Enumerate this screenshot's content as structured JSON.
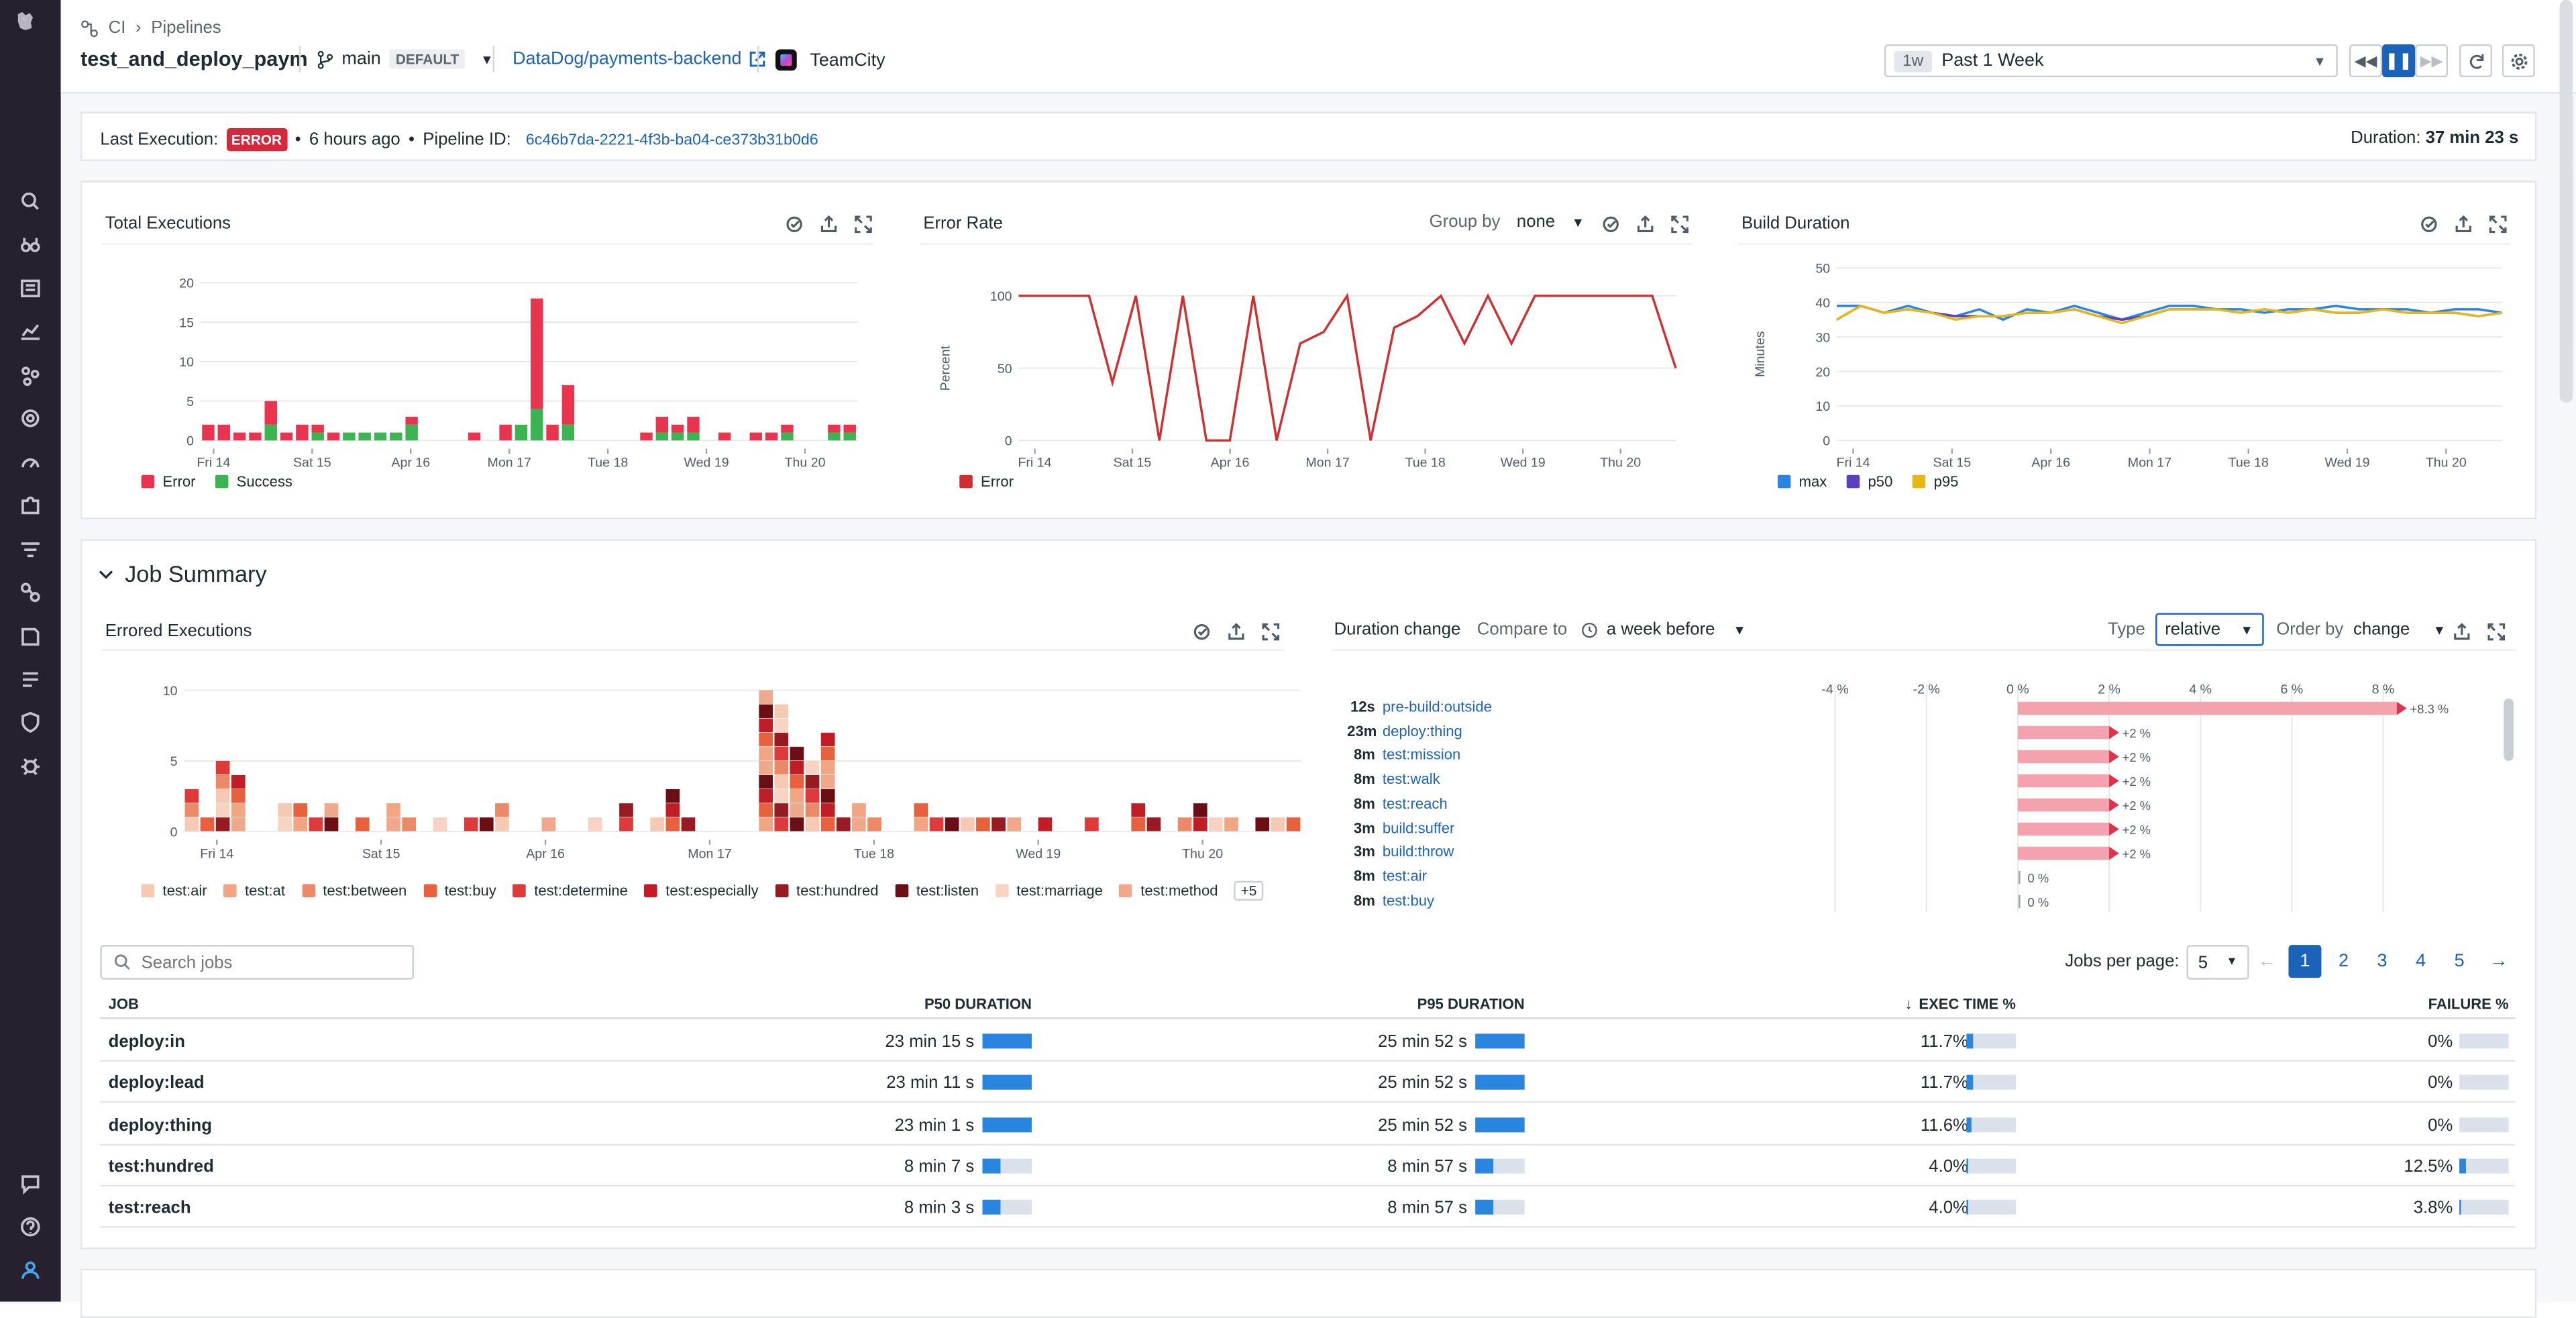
{
  "nav": {
    "icons": [
      "search-icon",
      "binoculars-icon",
      "list-icon",
      "chart-icon",
      "dots-icon",
      "target-icon",
      "gauge-icon",
      "puzzle-icon",
      "filter-icon",
      "link-icon",
      "book-icon",
      "logs-icon",
      "shield-icon",
      "bug-icon"
    ],
    "bottom": [
      "chat-icon",
      "help-icon",
      "user-icon"
    ]
  },
  "breadcrumb": {
    "root": "CI",
    "current": "Pipelines"
  },
  "header": {
    "title": "test_and_deploy_paym",
    "branch": "main",
    "branch_badge": "DEFAULT",
    "repo": "DataDog/payments-backend",
    "provider": "TeamCity"
  },
  "time": {
    "short": "1w",
    "label": "Past 1 Week"
  },
  "last_execution": {
    "label": "Last Execution:",
    "status": "ERROR",
    "ago": "6 hours ago",
    "pipeline_label": "Pipeline ID:",
    "pipeline_id": "6c46b7da-2221-4f3b-ba04-ce373b31b0d6",
    "duration_label": "Duration:",
    "duration": "37 min 23 s"
  },
  "panels": {
    "total": {
      "title": "Total Executions"
    },
    "error_rate": {
      "title": "Error Rate",
      "group_by_label": "Group by",
      "group_by": "none"
    },
    "build": {
      "title": "Build Duration"
    },
    "errored": {
      "title": "Errored Executions"
    },
    "duration_change": {
      "title": "Duration change",
      "compare_label": "Compare to",
      "compare": "a week before",
      "type_label": "Type",
      "type": "relative",
      "order_label": "Order by",
      "order": "change"
    }
  },
  "job_summary": {
    "title": "Job Summary",
    "search_placeholder": "Search jobs",
    "per_page_label": "Jobs per page:",
    "per_page": "5",
    "pages": [
      "1",
      "2",
      "3",
      "4",
      "5"
    ],
    "columns": {
      "job": "JOB",
      "p50": "P50 DURATION",
      "p95": "P95 DURATION",
      "exec": "EXEC TIME %",
      "fail": "FAILURE %"
    },
    "rows": [
      {
        "job": "deploy:in",
        "p50": "23 min 15 s",
        "p50_frac": 1.0,
        "p95": "25 min 52 s",
        "p95_frac": 1.0,
        "exec": "11.7%",
        "exec_frac": 0.117,
        "fail": "0%",
        "fail_frac": 0
      },
      {
        "job": "deploy:lead",
        "p50": "23 min 11 s",
        "p50_frac": 1.0,
        "p95": "25 min 52 s",
        "p95_frac": 1.0,
        "exec": "11.7%",
        "exec_frac": 0.117,
        "fail": "0%",
        "fail_frac": 0
      },
      {
        "job": "deploy:thing",
        "p50": "23 min 1 s",
        "p50_frac": 0.99,
        "p95": "25 min 52 s",
        "p95_frac": 1.0,
        "exec": "11.6%",
        "exec_frac": 0.116,
        "fail": "0%",
        "fail_frac": 0
      },
      {
        "job": "test:hundred",
        "p50": "8 min 7 s",
        "p50_frac": 0.35,
        "p95": "8 min 57 s",
        "p95_frac": 0.35,
        "exec": "4.0%",
        "exec_frac": 0.04,
        "fail": "12.5%",
        "fail_frac": 0.125
      },
      {
        "job": "test:reach",
        "p50": "8 min 3 s",
        "p50_frac": 0.35,
        "p95": "8 min 57 s",
        "p95_frac": 0.35,
        "exec": "4.0%",
        "exec_frac": 0.04,
        "fail": "3.8%",
        "fail_frac": 0.038
      }
    ]
  },
  "chart_data": [
    {
      "type": "bar",
      "title": "Total Executions",
      "stacked": true,
      "ylim": [
        0,
        20
      ],
      "yticks": [
        0,
        5,
        10,
        15,
        20
      ],
      "xticks": [
        "Fri 14",
        "Sat 15",
        "Apr 16",
        "Mon 17",
        "Tue 18",
        "Wed 19",
        "Thu 20"
      ],
      "series": [
        {
          "name": "Error",
          "color": "#e8344e",
          "values": [
            2,
            2,
            1,
            1,
            3,
            1,
            2,
            1,
            1,
            0,
            0,
            0,
            0,
            1,
            0,
            0,
            0,
            1,
            0,
            2,
            0,
            14,
            2,
            5,
            0,
            0,
            0,
            0,
            1,
            2,
            1,
            2,
            0,
            1,
            0,
            1,
            1,
            1,
            0,
            0,
            1,
            1
          ]
        },
        {
          "name": "Success",
          "color": "#3cb451",
          "values": [
            0,
            0,
            0,
            0,
            2,
            0,
            0,
            1,
            0,
            1,
            1,
            1,
            1,
            2,
            0,
            0,
            0,
            0,
            0,
            0,
            2,
            4,
            0,
            2,
            0,
            0,
            0,
            0,
            0,
            1,
            1,
            1,
            0,
            0,
            0,
            0,
            0,
            1,
            0,
            0,
            1,
            1
          ]
        }
      ]
    },
    {
      "type": "line",
      "title": "Error Rate",
      "ylabel": "Percent",
      "ylim": [
        0,
        100
      ],
      "yticks": [
        0,
        50,
        100
      ],
      "xticks": [
        "Fri 14",
        "Sat 15",
        "Apr 16",
        "Mon 17",
        "Tue 18",
        "Wed 19",
        "Thu 20"
      ],
      "series": [
        {
          "name": "Error",
          "color": "#d12f2f",
          "values": [
            100,
            100,
            100,
            100,
            40,
            100,
            0,
            100,
            0,
            0,
            100,
            0,
            67,
            75,
            100,
            0,
            78,
            86,
            100,
            67,
            100,
            67,
            100,
            100,
            100,
            100,
            100,
            100,
            50
          ]
        }
      ]
    },
    {
      "type": "line",
      "title": "Build Duration",
      "ylabel": "Minutes",
      "ylim": [
        0,
        50
      ],
      "yticks": [
        0,
        10,
        20,
        30,
        40,
        50
      ],
      "xticks": [
        "Fri 14",
        "Sat 15",
        "Apr 16",
        "Mon 17",
        "Tue 18",
        "Wed 19",
        "Thu 20"
      ],
      "series": [
        {
          "name": "max",
          "color": "#2a85de",
          "values": [
            39,
            39,
            37,
            39,
            37,
            36,
            38,
            35,
            38,
            37,
            39,
            37,
            35,
            37,
            39,
            39,
            38,
            38,
            37,
            38,
            38,
            39,
            38,
            38,
            38,
            37,
            38,
            38,
            37
          ]
        },
        {
          "name": "p50",
          "color": "#5b3fbf",
          "values": [
            35,
            39,
            37,
            38,
            37,
            36,
            36,
            36,
            37,
            37,
            38,
            36,
            35,
            36,
            38,
            38,
            38,
            37,
            38,
            37,
            38,
            37,
            37,
            38,
            37,
            37,
            37,
            36,
            37
          ]
        },
        {
          "name": "p95",
          "color": "#e6b817",
          "values": [
            35,
            39,
            37,
            38,
            37,
            35,
            36,
            36,
            37,
            37,
            38,
            36,
            34,
            36,
            38,
            38,
            38,
            37,
            38,
            37,
            38,
            37,
            37,
            38,
            37,
            37,
            37,
            36,
            37
          ]
        }
      ]
    },
    {
      "type": "bar",
      "title": "Errored Executions",
      "stacked": true,
      "ylim": [
        0,
        10
      ],
      "yticks": [
        0,
        5,
        10
      ],
      "xticks": [
        "Fri 14",
        "Sat 15",
        "Apr 16",
        "Mon 17",
        "Tue 18",
        "Wed 19",
        "Thu 20"
      ],
      "series": [
        {
          "name": "test:air",
          "color": "#f6c9b2"
        },
        {
          "name": "test:at",
          "color": "#f2a582"
        },
        {
          "name": "test:between",
          "color": "#ec8a67"
        },
        {
          "name": "test:buy",
          "color": "#e8613d"
        },
        {
          "name": "test:determine",
          "color": "#de3a3a"
        },
        {
          "name": "test:especially",
          "color": "#c21d26"
        },
        {
          "name": "test:hundred",
          "color": "#971b20"
        },
        {
          "name": "test:listen",
          "color": "#6b0f15"
        },
        {
          "name": "test:marriage",
          "color": "#f8d3c2"
        },
        {
          "name": "test:method",
          "color": "#f0a88a"
        }
      ],
      "totals": [
        3,
        1,
        5,
        4,
        0,
        0,
        2,
        2,
        1,
        2,
        0,
        1,
        0,
        2,
        1,
        0,
        1,
        0,
        1,
        1,
        2,
        0,
        0,
        1,
        0,
        0,
        1,
        0,
        2,
        0,
        1,
        3,
        1,
        0,
        0,
        0,
        0,
        10,
        9,
        6,
        5,
        7,
        1,
        2,
        1,
        0,
        0,
        2,
        1,
        1,
        1,
        1,
        1,
        1,
        0,
        1,
        0,
        0,
        1,
        0,
        0,
        2,
        1,
        0,
        1,
        2,
        1,
        1,
        0,
        1,
        1,
        1
      ],
      "legend_more": "+5"
    },
    {
      "type": "bar",
      "title": "Duration change",
      "orientation": "horizontal",
      "xlim": [
        -0.05,
        0.09
      ],
      "xticks": [
        "-4 %",
        "-2 %",
        "0 %",
        "2 %",
        "4 %",
        "6 %",
        "8 %"
      ],
      "rows": [
        {
          "dur": "12s",
          "job": "pre-build:outside",
          "value": 8.3,
          "label": "+8.3 %"
        },
        {
          "dur": "23m",
          "job": "deploy:thing",
          "value": 2,
          "label": "+2 %"
        },
        {
          "dur": "8m",
          "job": "test:mission",
          "value": 2,
          "label": "+2 %"
        },
        {
          "dur": "8m",
          "job": "test:walk",
          "value": 2,
          "label": "+2 %"
        },
        {
          "dur": "8m",
          "job": "test:reach",
          "value": 2,
          "label": "+2 %"
        },
        {
          "dur": "3m",
          "job": "build:suffer",
          "value": 2,
          "label": "+2 %"
        },
        {
          "dur": "3m",
          "job": "build:throw",
          "value": 2,
          "label": "+2 %"
        },
        {
          "dur": "8m",
          "job": "test:air",
          "value": 0,
          "label": "0 %"
        },
        {
          "dur": "8m",
          "job": "test:buy",
          "value": 0,
          "label": "0 %"
        }
      ]
    }
  ]
}
